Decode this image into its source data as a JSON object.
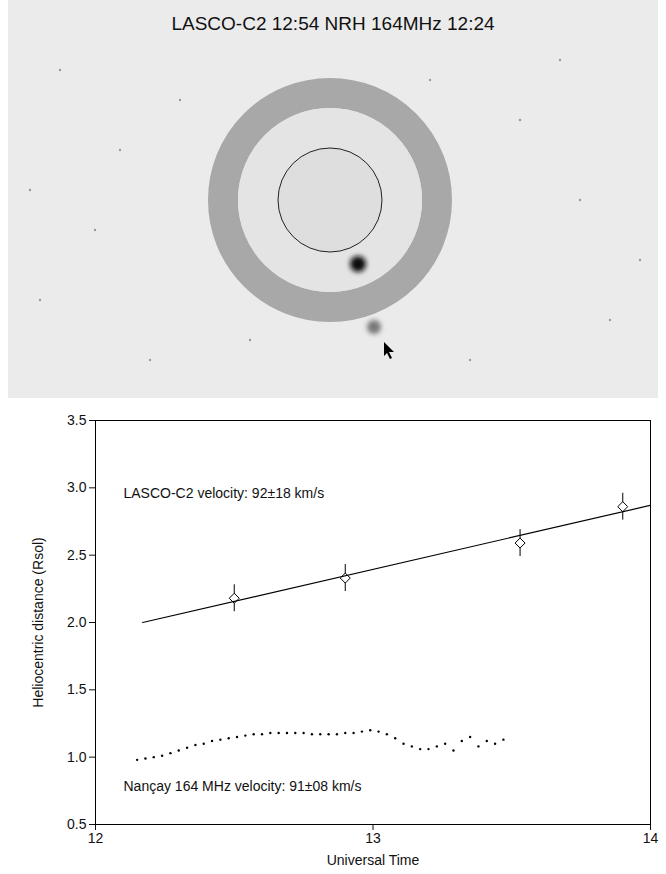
{
  "image": {
    "title": "LASCO-C2 12:54 NRH 164MHz 12:24"
  },
  "chart_data": {
    "type": "scatter",
    "xlabel": "Universal Time",
    "ylabel": "Heliocentric distance (Rsol)",
    "xlim": [
      12,
      14
    ],
    "xticks": [
      12,
      13,
      14
    ],
    "ylim": [
      0.5,
      3.5
    ],
    "yticks": [
      0.5,
      {
        "value": 1,
        "label": "1.0"
      },
      1.5,
      {
        "value": 2,
        "label": "2.0"
      },
      2.5,
      {
        "value": 3,
        "label": "3.0"
      },
      3.5
    ],
    "grid": false,
    "annotations": [
      "LASCO-C2 velocity: 92±18 km/s",
      "Nançay 164 MHz velocity: 91±08 km/s"
    ],
    "series": [
      {
        "type": "scatter",
        "marker": "diamond",
        "color": "#000000",
        "x": [
          12.5,
          12.9,
          13.53,
          13.9
        ],
        "values": [
          2.18,
          2.33,
          2.59,
          2.86
        ],
        "errors": [
          0.1,
          0.1,
          0.1,
          0.1
        ]
      },
      {
        "type": "line",
        "line_style": "solid",
        "color": "#000000",
        "x": [
          12.17,
          14
        ],
        "values": [
          2.0,
          2.87
        ]
      },
      {
        "type": "scatter",
        "marker": "dot",
        "color": "#000000",
        "x": [
          12.15,
          12.18,
          12.21,
          12.24,
          12.27,
          12.3,
          12.33,
          12.36,
          12.39,
          12.42,
          12.45,
          12.48,
          12.51,
          12.54,
          12.57,
          12.6,
          12.63,
          12.66,
          12.69,
          12.72,
          12.75,
          12.78,
          12.81,
          12.84,
          12.87,
          12.9,
          12.93,
          12.96,
          12.99,
          13.02,
          13.05,
          13.08,
          13.11,
          13.14,
          13.17,
          13.2,
          13.23,
          13.26,
          13.29,
          13.32,
          13.35,
          13.38,
          13.41,
          13.44,
          13.47
        ],
        "values": [
          0.98,
          0.99,
          1.0,
          1.01,
          1.03,
          1.05,
          1.07,
          1.09,
          1.1,
          1.12,
          1.13,
          1.14,
          1.15,
          1.16,
          1.17,
          1.17,
          1.18,
          1.18,
          1.18,
          1.18,
          1.18,
          1.17,
          1.17,
          1.17,
          1.17,
          1.18,
          1.18,
          1.19,
          1.2,
          1.19,
          1.17,
          1.14,
          1.1,
          1.08,
          1.06,
          1.06,
          1.08,
          1.1,
          1.05,
          1.12,
          1.15,
          1.08,
          1.12,
          1.1,
          1.13
        ]
      }
    ]
  }
}
